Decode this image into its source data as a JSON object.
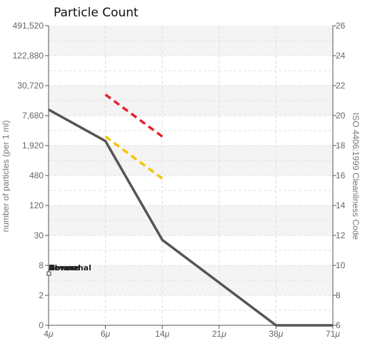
{
  "chart_data": {
    "type": "line",
    "title": "Particle Count",
    "ylabel": "number of particles (per 1 ml)",
    "y2label": "ISO 4406:1999 Cleanliness Code",
    "x_ticks": [
      "4",
      "6",
      "14",
      "21",
      "38",
      "71"
    ],
    "x_unit": "μ",
    "y_ticks": [
      "0",
      "2",
      "8",
      "30",
      "120",
      "480",
      "1,920",
      "7,680",
      "30,720",
      "122,880",
      "491,520"
    ],
    "y2_ticks": [
      "6",
      "8",
      "10",
      "12",
      "14",
      "16",
      "18",
      "20",
      "22",
      "24",
      "26"
    ],
    "scale": "log (ISO code levels)",
    "grid": true,
    "series": [
      {
        "color": "#555555",
        "style": "solid",
        "points": [
          {
            "x": "4",
            "code": 20.4
          },
          {
            "x": "6",
            "code": 18.3
          },
          {
            "x": "14",
            "code": 11.7
          },
          {
            "x": "38",
            "code": 6
          },
          {
            "x": "71",
            "code": 6
          }
        ]
      },
      {
        "name": "Severe",
        "color": "#e8202a",
        "style": "dashed",
        "points": [
          {
            "x": "6",
            "code": 21.4
          },
          {
            "x": "14",
            "code": 18.6
          }
        ]
      },
      {
        "name": "Abnormal",
        "color": "#f5c400",
        "style": "dashed",
        "points": [
          {
            "x": "6",
            "code": 18.6
          },
          {
            "x": "14",
            "code": 15.8
          }
        ]
      },
      {
        "name": "Normal",
        "color": "#777777",
        "style": "solid",
        "points": []
      }
    ],
    "legend_labels": [
      "Severe",
      "Abnormal",
      "Normal"
    ]
  }
}
